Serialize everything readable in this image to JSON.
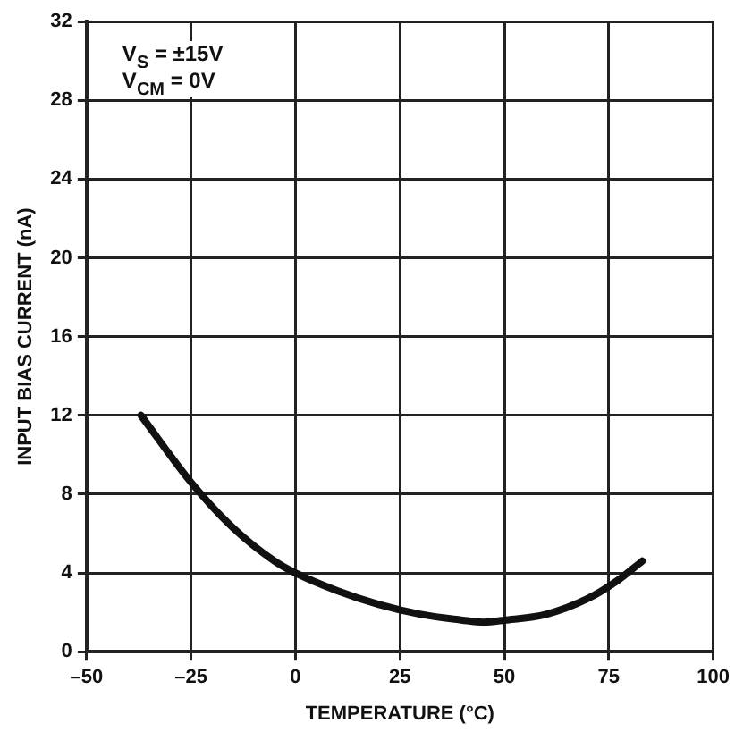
{
  "chart_data": {
    "type": "line",
    "xlabel": "TEMPERATURE (°C)",
    "ylabel": "INPUT BIAS CURRENT (nA)",
    "annotations": [
      "V$_{S}$ = ±15V",
      "V$_{CM}$ = 0V"
    ],
    "x": [
      -37,
      -25,
      -15,
      -5,
      0,
      10,
      20,
      30,
      40,
      45,
      50,
      60,
      70,
      77,
      83
    ],
    "series": [
      {
        "color": "#111111",
        "values": [
          12,
          8.6,
          6.3,
          4.6,
          4,
          3.1,
          2.4,
          1.9,
          1.6,
          1.5,
          1.6,
          1.9,
          2.7,
          3.6,
          4.6
        ]
      }
    ],
    "xlim": [
      -50,
      100
    ],
    "xticks": [
      {
        "value": -50,
        "label": "–50"
      },
      {
        "value": -25,
        "label": "–25"
      },
      0,
      25,
      50,
      75,
      100
    ],
    "ylim": [
      0,
      32
    ],
    "yticks": [
      0,
      4,
      8,
      12,
      16,
      20,
      24,
      28,
      32
    ],
    "grid": true,
    "legend": false,
    "marker": "none",
    "line_style": "solid"
  }
}
